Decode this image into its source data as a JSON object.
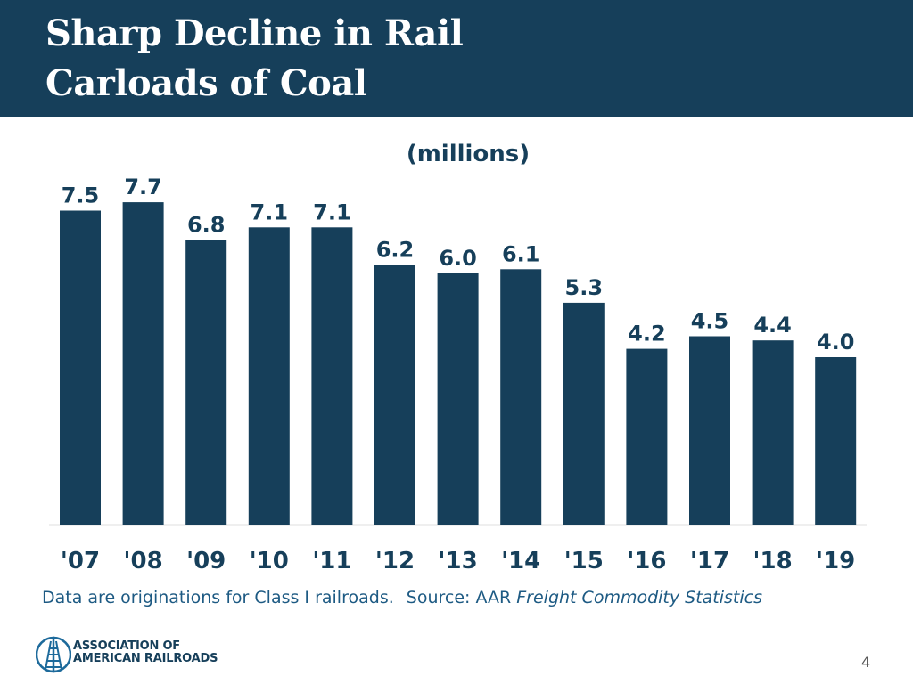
{
  "header": {
    "title_line1": "Sharp Decline in Rail",
    "title_line2": "Carloads of Coal"
  },
  "colors": {
    "header_bg": "#163f5a",
    "bar": "#163f5a",
    "footnote": "#1d5a83"
  },
  "chart_data": {
    "type": "bar",
    "title": "(millions)",
    "categories": [
      "'07",
      "'08",
      "'09",
      "'10",
      "'11",
      "'12",
      "'13",
      "'14",
      "'15",
      "'16",
      "'17",
      "'18",
      "'19"
    ],
    "values": [
      7.5,
      7.7,
      6.8,
      7.1,
      7.1,
      6.2,
      6.0,
      6.1,
      5.3,
      4.2,
      4.5,
      4.4,
      4.0
    ],
    "value_labels": [
      "7.5",
      "7.7",
      "6.8",
      "7.1",
      "7.1",
      "6.2",
      "6.0",
      "6.1",
      "5.3",
      "4.2",
      "4.5",
      "4.4",
      "4.0"
    ],
    "xlabel": "",
    "ylabel": "",
    "ylim": [
      0,
      8
    ],
    "grid": false
  },
  "footnote": {
    "note": "Data are originations for Class I railroads.",
    "source_prefix": "Source: AAR",
    "source_title": "Freight Commodity Statistics"
  },
  "logo": {
    "icon": "railroad-track-icon",
    "line1": "ASSOCIATION OF",
    "line2": "AMERICAN RAILROADS"
  },
  "page_number": "4"
}
